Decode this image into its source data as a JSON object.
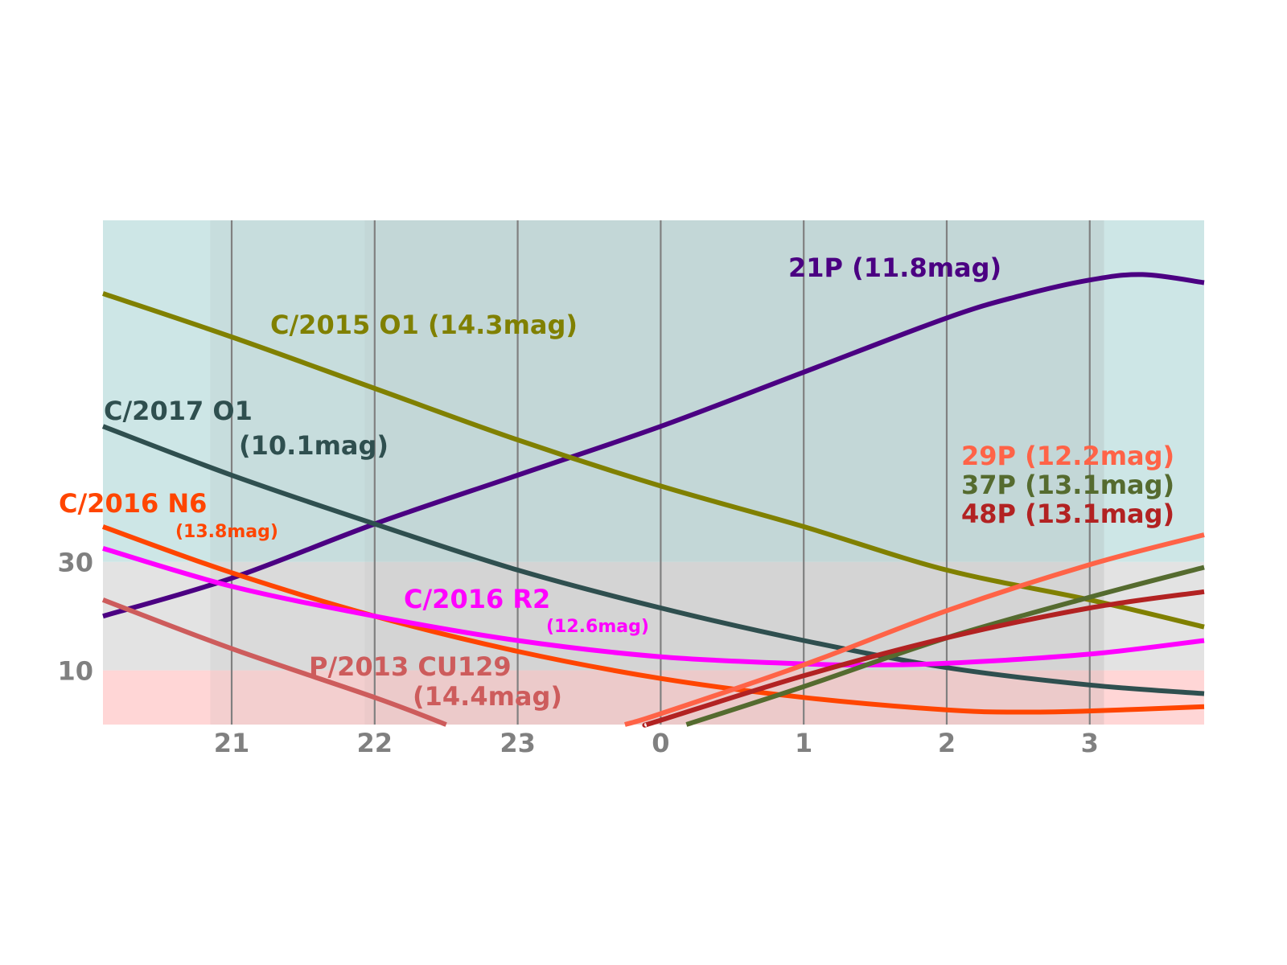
{
  "chart_data": {
    "type": "line",
    "title": "",
    "xlabel": "",
    "ylabel": "",
    "xlim": [
      20.1,
      27.8
    ],
    "ylim": [
      0,
      93
    ],
    "x_ticks": [
      {
        "value": 21,
        "label": "21"
      },
      {
        "value": 22,
        "label": "22"
      },
      {
        "value": 23,
        "label": "23"
      },
      {
        "value": 24,
        "label": "0"
      },
      {
        "value": 25,
        "label": "1"
      },
      {
        "value": 26,
        "label": "2"
      },
      {
        "value": 27,
        "label": "3"
      }
    ],
    "y_ticks": [
      {
        "value": 10,
        "label": "10"
      },
      {
        "value": 30,
        "label": "30"
      }
    ],
    "bands": [
      {
        "from": 0,
        "to": 10,
        "color": "#ffd6d6"
      },
      {
        "from": 10,
        "to": 30,
        "color": "#e3e3e3"
      },
      {
        "from": 30,
        "to": 93,
        "color": "#cde6e6"
      }
    ],
    "night_shading": [
      {
        "from": 20.85,
        "to": 27.1,
        "color": "#9a9a9a",
        "opacity": 0.12
      },
      {
        "from": 21.93,
        "to": 27.1,
        "color": "#9a9a9a",
        "opacity": 0.08
      }
    ],
    "series": [
      {
        "name": "21P",
        "mag": "(11.8mag)",
        "color": "#4b0082",
        "x": [
          20.1,
          21.0,
          22.0,
          23.0,
          24.0,
          25.0,
          26.0,
          26.5,
          27.0,
          27.37,
          27.8
        ],
        "y": [
          20,
          27,
          37,
          46,
          55,
          65,
          75,
          79,
          82,
          83,
          81.5
        ]
      },
      {
        "name": "C/2015 O1",
        "mag": "(14.3mag)",
        "color": "#808000",
        "x": [
          20.1,
          21.0,
          22.0,
          23.0,
          24.0,
          25.0,
          26.0,
          27.0,
          27.8
        ],
        "y": [
          79.5,
          71.5,
          62,
          52.5,
          44,
          36.5,
          28.5,
          23,
          18
        ]
      },
      {
        "name": "C/2017 O1",
        "mag": "(10.1mag)",
        "color": "#2f4f4f",
        "x": [
          20.1,
          21.0,
          22.0,
          23.0,
          24.0,
          25.0,
          26.0,
          27.0,
          27.8
        ],
        "y": [
          55,
          46,
          37,
          28.5,
          21.5,
          15.5,
          10.5,
          7.3,
          5.7
        ]
      },
      {
        "name": "C/2016 N6",
        "mag": "(13.8mag)",
        "color": "#ff4500",
        "x": [
          20.1,
          21.0,
          22.0,
          23.0,
          24.0,
          25.0,
          26.0,
          26.5,
          27.0,
          27.8
        ],
        "y": [
          36.5,
          28,
          20,
          13.5,
          8.5,
          5,
          2.7,
          2.3,
          2.5,
          3.3
        ]
      },
      {
        "name": "C/2016 R2",
        "mag": "(12.6mag)",
        "color": "#ff00ff",
        "x": [
          20.1,
          21.0,
          22.0,
          23.0,
          24.0,
          25.0,
          25.5,
          26.0,
          27.0,
          27.8
        ],
        "y": [
          32.5,
          25.5,
          20,
          15.5,
          12.5,
          11.2,
          11,
          11.3,
          13,
          15.5
        ]
      },
      {
        "name": "P/2013 CU129",
        "mag": "(14.4mag)",
        "color": "#cd5c5c",
        "x": [
          20.1,
          21.0,
          22.0,
          22.5
        ],
        "y": [
          23,
          14,
          5,
          0
        ]
      },
      {
        "name": "29P",
        "mag": "(12.2mag)",
        "color": "#ff6347",
        "x": [
          23.75,
          24.0,
          25.0,
          26.0,
          27.0,
          27.8
        ],
        "y": [
          0,
          2,
          11,
          21,
          29.5,
          35
        ]
      },
      {
        "name": "37P",
        "mag": "(13.1mag)",
        "color": "#556b2f",
        "x": [
          24.18,
          25.0,
          26.0,
          27.0,
          27.8
        ],
        "y": [
          0,
          7,
          16,
          23.5,
          29
        ]
      },
      {
        "name": "48P",
        "mag": "(13.1mag)",
        "color": "#b22222",
        "x": [
          23.9,
          24.0,
          25.0,
          26.0,
          27.0,
          27.8
        ],
        "y": [
          0,
          0.8,
          9,
          16,
          21.5,
          24.5
        ]
      }
    ]
  }
}
